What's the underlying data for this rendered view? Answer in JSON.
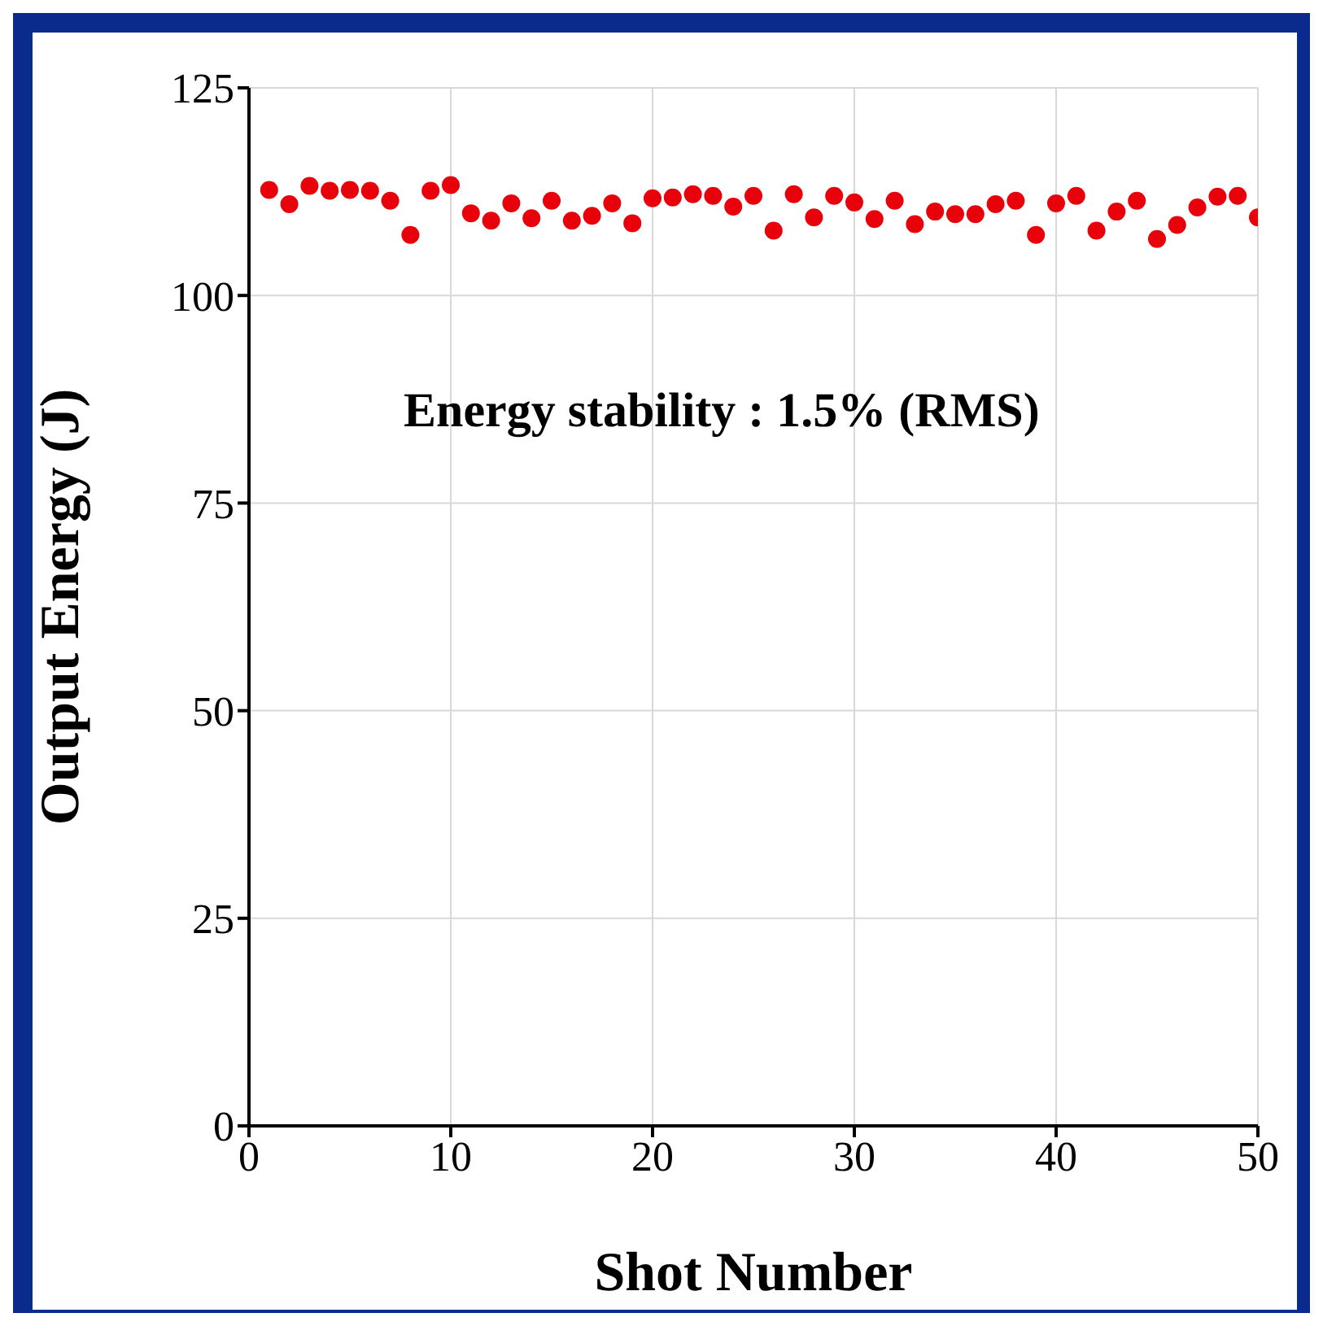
{
  "chart_data": {
    "type": "scatter",
    "xlabel": "Shot Number",
    "ylabel": "Output Energy (J)",
    "annotations": [
      "Energy stability : 1.5% (RMS)"
    ],
    "x": [
      1,
      2,
      3,
      4,
      5,
      6,
      7,
      8,
      9,
      10,
      11,
      12,
      13,
      14,
      15,
      16,
      17,
      18,
      19,
      20,
      21,
      22,
      23,
      24,
      25,
      26,
      27,
      28,
      29,
      30,
      31,
      32,
      33,
      34,
      35,
      36,
      37,
      38,
      39,
      40,
      41,
      42,
      43,
      44,
      45,
      46,
      47,
      48,
      49,
      50
    ],
    "series": [
      {
        "color": "#e8000b",
        "values": [
          112.7,
          111.0,
          113.2,
          112.6,
          112.7,
          112.6,
          111.4,
          107.3,
          112.6,
          113.3,
          109.9,
          109.0,
          111.1,
          109.3,
          111.4,
          109.0,
          109.6,
          111.1,
          108.7,
          111.7,
          111.8,
          112.2,
          112.0,
          110.7,
          112.0,
          107.8,
          112.2,
          109.4,
          112.0,
          111.2,
          109.2,
          111.4,
          108.6,
          110.1,
          109.8,
          109.8,
          111.0,
          111.4,
          107.3,
          111.1,
          112.0,
          107.8,
          110.1,
          111.4,
          106.8,
          108.5,
          110.6,
          111.9,
          112.0,
          109.4
        ]
      }
    ],
    "xlim": [
      0,
      50
    ],
    "xticks": [
      0,
      10,
      20,
      30,
      40,
      50
    ],
    "ylim": [
      0,
      125
    ],
    "yticks": [
      0,
      25,
      50,
      75,
      100,
      125
    ],
    "grid": true,
    "marker": "circle"
  }
}
